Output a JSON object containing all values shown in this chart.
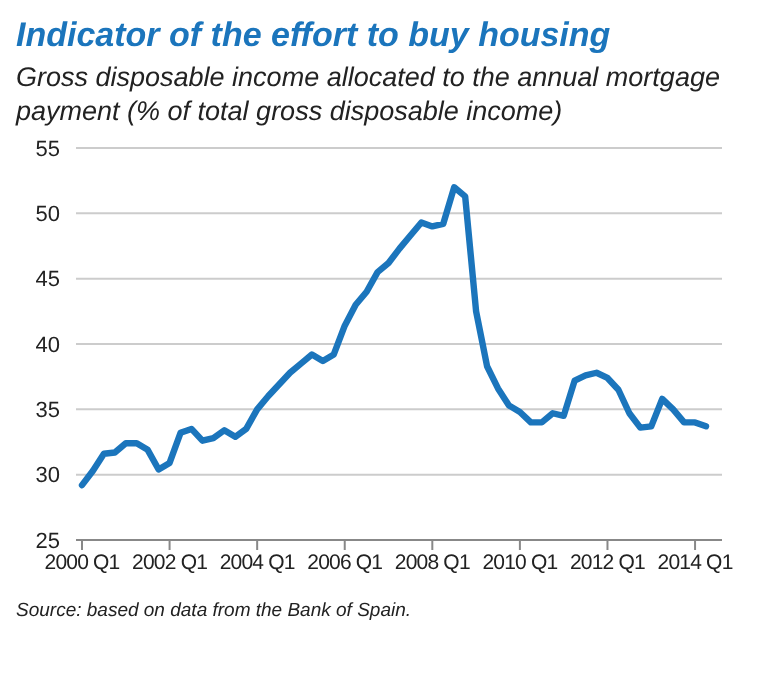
{
  "chart_data": {
    "type": "line",
    "title": "Indicator of the effort to buy housing",
    "subtitle": "Gross disposable income allocated to the annual mortgage payment (% of total gross disposable income)",
    "categories": [
      "2000 Q1",
      null,
      null,
      null,
      null,
      null,
      null,
      null,
      "2002 Q1",
      null,
      null,
      null,
      null,
      null,
      null,
      null,
      "2004 Q1",
      null,
      null,
      null,
      null,
      null,
      null,
      null,
      "2006 Q1",
      null,
      null,
      null,
      null,
      null,
      null,
      null,
      "2008 Q1",
      null,
      null,
      null,
      null,
      null,
      null,
      null,
      "2010 Q1",
      null,
      null,
      null,
      null,
      null,
      null,
      null,
      "2012 Q1",
      null,
      null,
      null,
      null,
      null,
      null,
      null,
      "2014 Q1",
      null
    ],
    "series": [
      {
        "color": "#1b75bc",
        "values": [
          29.2,
          30.3,
          31.6,
          31.7,
          32.4,
          32.4,
          31.9,
          30.4,
          30.9,
          33.2,
          33.5,
          32.6,
          32.8,
          33.4,
          32.9,
          33.5,
          35.0,
          36.0,
          36.9,
          37.8,
          38.5,
          39.2,
          38.7,
          39.2,
          41.4,
          43.0,
          44.0,
          45.5,
          46.2,
          47.3,
          48.3,
          49.3,
          49.0,
          49.2,
          52.0,
          51.3,
          42.5,
          38.3,
          36.6,
          35.3,
          34.8,
          34.0,
          34.0,
          34.7,
          34.5,
          37.2,
          37.6,
          37.8,
          37.4,
          36.5,
          34.7,
          33.6,
          33.7,
          35.8,
          35.0,
          34.0,
          34.0,
          33.7
        ]
      }
    ],
    "ylim": [
      25,
      55
    ],
    "yticks": [
      25,
      30,
      35,
      40,
      45,
      50,
      55
    ],
    "grid": "y",
    "legend": false,
    "marker": "none",
    "line_style": "solid",
    "annotations": [
      "Source: based on data from the Bank of Spain."
    ]
  }
}
